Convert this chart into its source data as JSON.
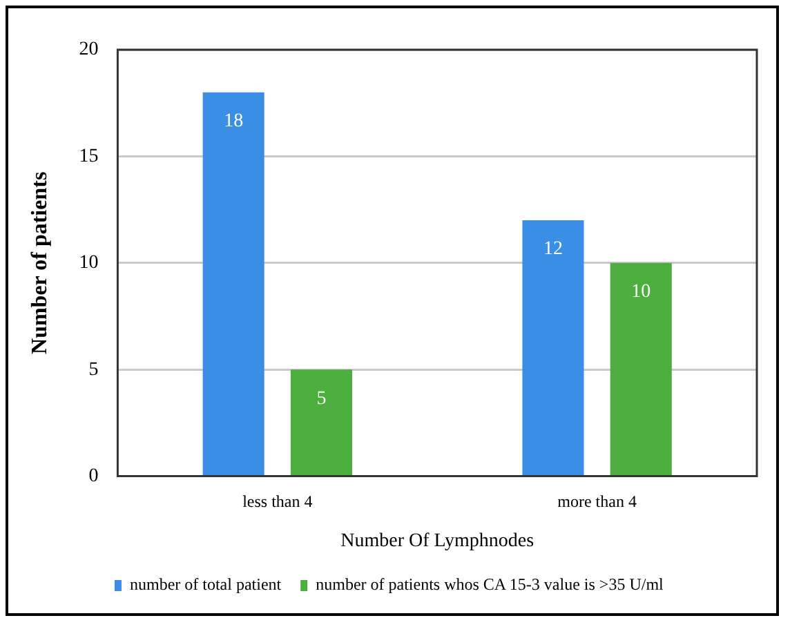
{
  "chart_data": {
    "type": "bar",
    "xlabel": "Number Of Lymphnodes",
    "ylabel": "Number of patients",
    "categories": [
      "less than 4",
      "more than 4"
    ],
    "series": [
      {
        "name": "number of total patient",
        "color": "#3a8ee6",
        "values": [
          18,
          12
        ]
      },
      {
        "name": "number of patients whos CA 15-3 value is >35 U/ml",
        "color": "#4cae3c",
        "values": [
          5,
          10
        ]
      }
    ],
    "ylim": [
      0,
      20
    ],
    "yticks": [
      0,
      5,
      10,
      15,
      20
    ],
    "grid": "y",
    "legend": "bottom",
    "data_labels": true
  }
}
